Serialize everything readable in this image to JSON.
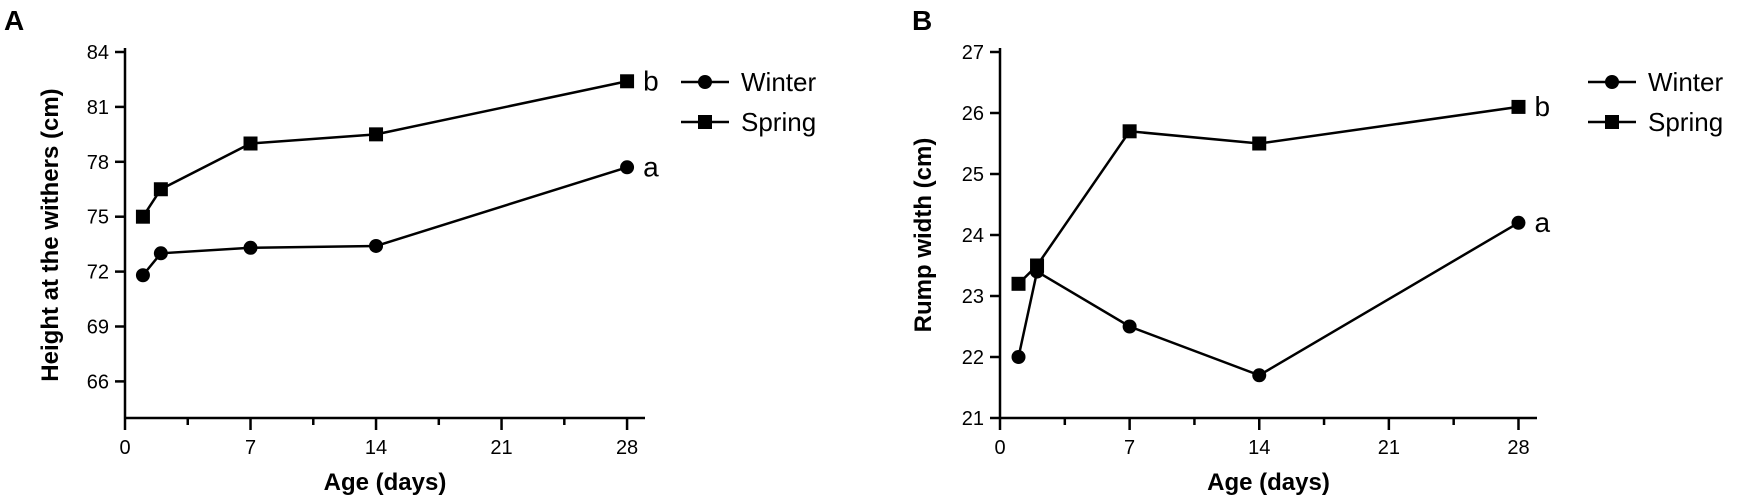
{
  "chart_data": [
    {
      "panel": "A",
      "type": "line",
      "xlabel": "Age (days)",
      "ylabel": "Height at the withers (cm)",
      "xlim": [
        0,
        29
      ],
      "ylim": [
        64,
        84
      ],
      "xticks": [
        0,
        7,
        14,
        21,
        28
      ],
      "xtick_labels": [
        "0",
        "7",
        "14",
        "21",
        "28"
      ],
      "yticks": [
        66,
        69,
        72,
        75,
        78,
        81,
        84
      ],
      "ytick_labels": [
        "66",
        "69",
        "72",
        "75",
        "78",
        "81",
        "84"
      ],
      "legend": "top-right",
      "grid": false,
      "x": [
        1,
        2,
        7,
        14,
        28
      ],
      "series": [
        {
          "name": "Winter",
          "marker": "circle",
          "values": [
            71.8,
            73.0,
            73.3,
            73.4,
            77.7
          ],
          "end_label": "a"
        },
        {
          "name": "Spring",
          "marker": "square",
          "values": [
            75.0,
            76.5,
            79.0,
            79.5,
            82.4
          ],
          "end_label": "b"
        }
      ]
    },
    {
      "panel": "B",
      "type": "line",
      "xlabel": "Age (days)",
      "ylabel": "Rump width (cm)",
      "xlim": [
        0,
        29
      ],
      "ylim": [
        21,
        27
      ],
      "xticks": [
        0,
        7,
        14,
        21,
        28
      ],
      "xtick_labels": [
        "0",
        "7",
        "14",
        "21",
        "28"
      ],
      "yticks": [
        21,
        22,
        23,
        24,
        25,
        26,
        27
      ],
      "ytick_labels": [
        "21",
        "22",
        "23",
        "24",
        "25",
        "26",
        "27"
      ],
      "legend": "top-right",
      "grid": false,
      "x": [
        1,
        2,
        7,
        14,
        28
      ],
      "series": [
        {
          "name": "Winter",
          "marker": "circle",
          "values": [
            22.0,
            23.4,
            22.5,
            21.7,
            24.2
          ],
          "end_label": "a"
        },
        {
          "name": "Spring",
          "marker": "square",
          "values": [
            23.2,
            23.5,
            25.7,
            25.5,
            26.1
          ],
          "end_label": "b"
        }
      ]
    }
  ]
}
